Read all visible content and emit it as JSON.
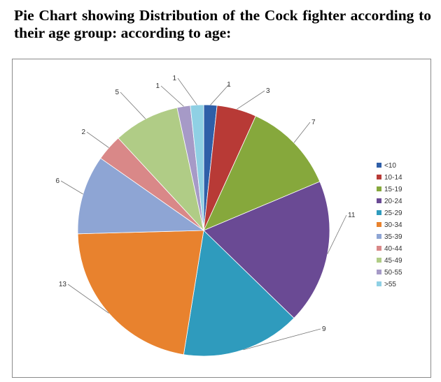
{
  "page_title": "Pie Chart showing Distribution of the Cock fighter according to their age group: according to age:",
  "chart_data": {
    "type": "pie",
    "title": "",
    "categories": [
      "<10",
      "10-14",
      "15-19",
      "20-24",
      "25-29",
      "30-34",
      "35-39",
      "40-44",
      "45-49",
      "50-55",
      ">55"
    ],
    "values": [
      1,
      3,
      7,
      11,
      9,
      13,
      6,
      2,
      5,
      1,
      1
    ],
    "colors": [
      "#2f5fa8",
      "#b83a36",
      "#86a83c",
      "#6a4a94",
      "#2f9bbd",
      "#e8822e",
      "#8ea5d4",
      "#d98888",
      "#b0cc86",
      "#a69ac7",
      "#8fd0e4"
    ],
    "legend_position": "right",
    "data_labels": true
  }
}
